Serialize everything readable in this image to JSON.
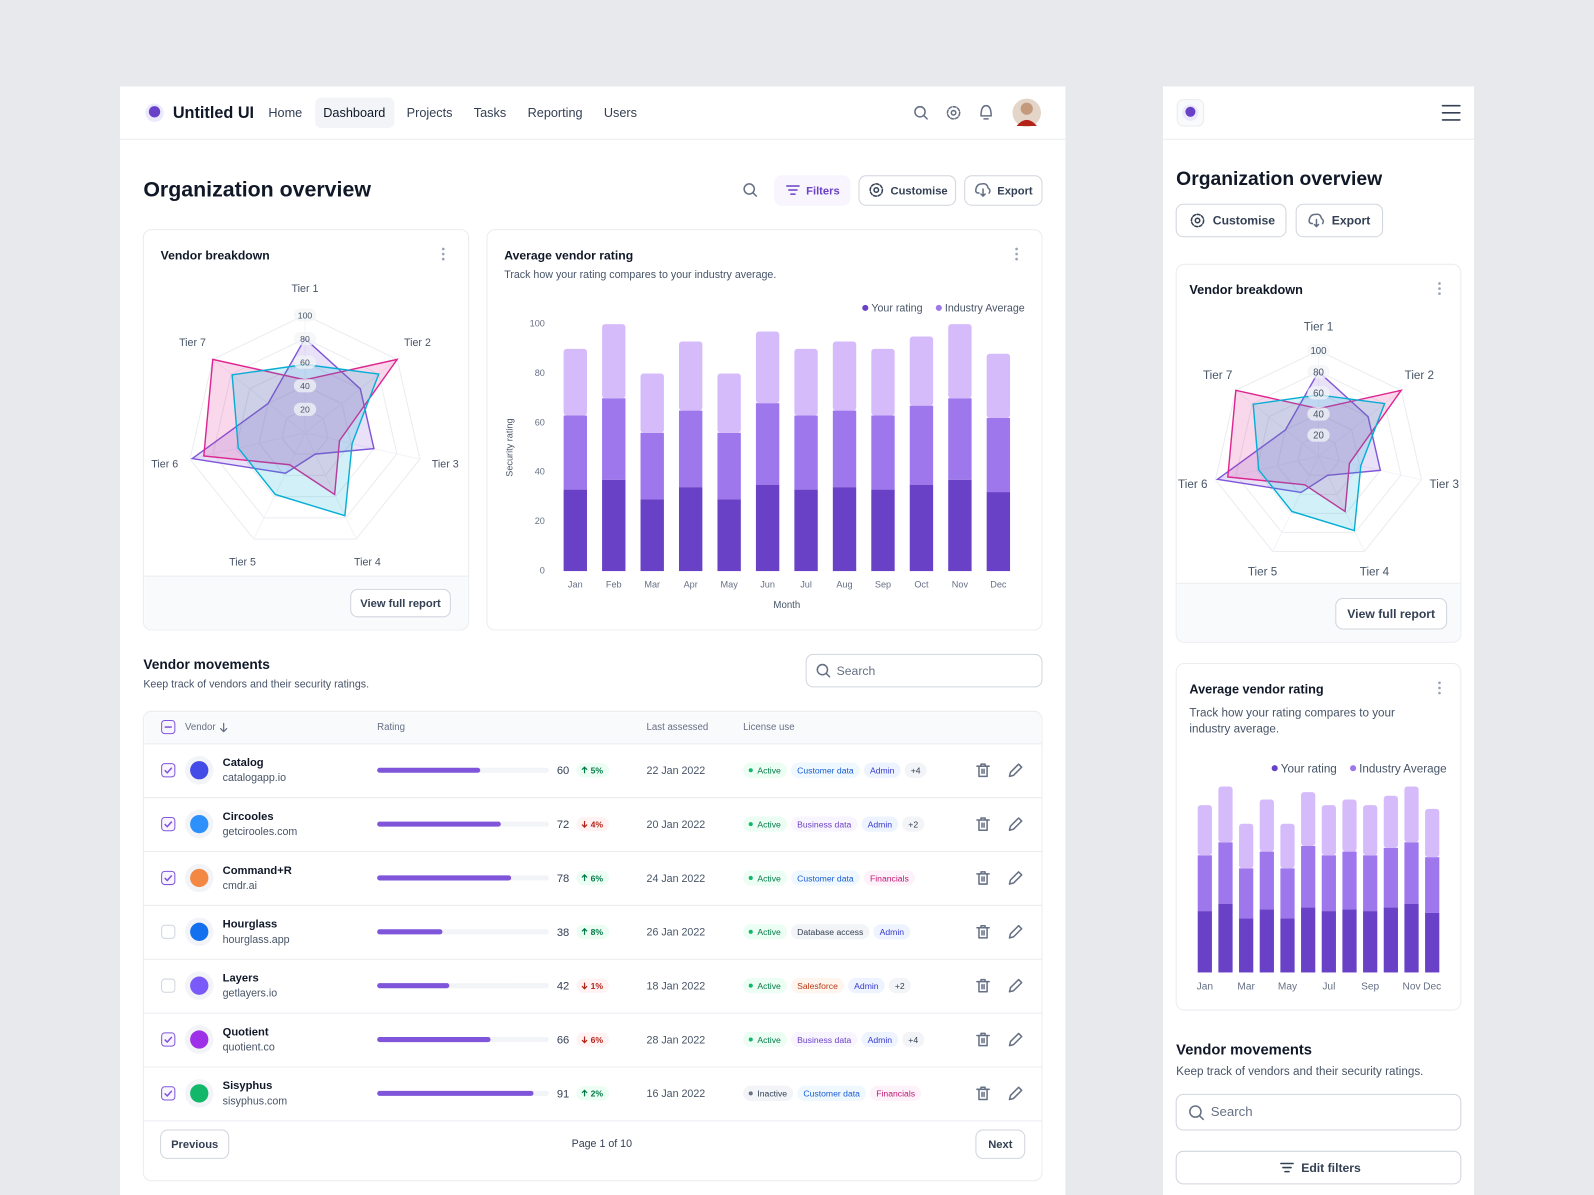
{
  "nav": {
    "brand": "Untitled UI",
    "links": [
      "Home",
      "Dashboard",
      "Projects",
      "Tasks",
      "Reporting",
      "Users"
    ]
  },
  "header": {
    "title": "Organization overview",
    "actions": [
      "Filters",
      "Customise",
      "Export"
    ]
  },
  "chart_data": [
    {
      "type": "radar",
      "title": "Vendor breakdown",
      "categories": [
        "Tier 1",
        "Tier 2",
        "Tier 3",
        "Tier 4",
        "Tier 5",
        "Tier 6",
        "Tier 7"
      ],
      "rlim": [
        0,
        100
      ],
      "rticks": [
        20,
        40,
        60,
        80,
        100
      ],
      "series": [
        {
          "color": "#7f56d9",
          "values": [
            80,
            60,
            60,
            20,
            38,
            98,
            40
          ]
        },
        {
          "color": "#dd2590",
          "values": [
            45,
            100,
            30,
            58,
            30,
            88,
            100
          ]
        },
        {
          "color": "#06aed4",
          "values": [
            58,
            80,
            41,
            78,
            58,
            58,
            79
          ]
        }
      ],
      "footer_action": "View full report"
    },
    {
      "type": "bar",
      "stacked": true,
      "title": "Average vendor rating",
      "subtitle": "Track how your rating compares to your industry average.",
      "xlabel": "Month",
      "ylabel": "Security rating",
      "categories": [
        "Jan",
        "Feb",
        "Mar",
        "Apr",
        "May",
        "Jun",
        "Jul",
        "Aug",
        "Sep",
        "Oct",
        "Nov",
        "Dec"
      ],
      "ylim": [
        0,
        100
      ],
      "yticks": [
        0,
        20,
        40,
        60,
        80,
        100
      ],
      "grid": false,
      "legend": "top-right",
      "series": [
        {
          "name": "Your rating",
          "color": "#6941c6",
          "values": [
            33,
            37,
            29,
            34,
            29,
            35,
            33,
            34,
            33,
            35,
            37,
            32
          ]
        },
        {
          "name": "Industry Average",
          "color": "#9e77ed",
          "values": [
            30,
            33,
            27,
            31,
            27,
            33,
            30,
            31,
            30,
            32,
            33,
            30
          ]
        },
        {
          "color": "#d6bbfb",
          "values": [
            27,
            30,
            24,
            28,
            24,
            29,
            27,
            28,
            27,
            28,
            30,
            26
          ]
        }
      ]
    }
  ],
  "vendor_movements": {
    "title": "Vendor movements",
    "subtitle": "Keep track of vendors and their security ratings.",
    "search_placeholder": "Search",
    "columns": [
      "Vendor",
      "Rating",
      "Last assessed",
      "License use"
    ],
    "rating_scale": [
      0,
      100
    ],
    "rows": [
      {
        "name": "Catalog",
        "domain": "catalogapp.io",
        "logo_color": "#444ce7",
        "checked": true,
        "rating": 60,
        "change": 5,
        "change_label": "5%",
        "trend": "up",
        "last_assessed": "22 Jan 2022",
        "tags": [
          {
            "text": "Active",
            "tone": "success"
          },
          {
            "text": "Customer data",
            "tone": "blue"
          },
          {
            "text": "Admin",
            "tone": "indigo"
          },
          {
            "text": "+4",
            "tone": "gray"
          }
        ]
      },
      {
        "name": "Circooles",
        "domain": "getcirooles.com",
        "logo_color": "#2e90fa",
        "checked": true,
        "rating": 72,
        "change": 4,
        "change_label": "4%",
        "trend": "down",
        "last_assessed": "20 Jan 2022",
        "tags": [
          {
            "text": "Active",
            "tone": "success"
          },
          {
            "text": "Business data",
            "tone": "purple"
          },
          {
            "text": "Admin",
            "tone": "indigo"
          },
          {
            "text": "+2",
            "tone": "gray"
          }
        ]
      },
      {
        "name": "Command+R",
        "domain": "cmdr.ai",
        "logo_color": "#f38744",
        "checked": true,
        "rating": 78,
        "change": 6,
        "change_label": "6%",
        "trend": "up",
        "last_assessed": "24 Jan 2022",
        "tags": [
          {
            "text": "Active",
            "tone": "success"
          },
          {
            "text": "Customer data",
            "tone": "blue"
          },
          {
            "text": "Financials",
            "tone": "pink"
          }
        ]
      },
      {
        "name": "Hourglass",
        "domain": "hourglass.app",
        "logo_color": "#1570ef",
        "checked": false,
        "rating": 38,
        "change": 8,
        "change_label": "8%",
        "trend": "up",
        "last_assessed": "26 Jan 2022",
        "tags": [
          {
            "text": "Active",
            "tone": "success"
          },
          {
            "text": "Database access",
            "tone": "gray"
          },
          {
            "text": "Admin",
            "tone": "indigo"
          }
        ]
      },
      {
        "name": "Layers",
        "domain": "getlayers.io",
        "logo_color": "#7a5af8",
        "checked": false,
        "rating": 42,
        "change": 1,
        "change_label": "1%",
        "trend": "down",
        "last_assessed": "18 Jan 2022",
        "tags": [
          {
            "text": "Active",
            "tone": "success"
          },
          {
            "text": "Salesforce",
            "tone": "orange"
          },
          {
            "text": "Admin",
            "tone": "indigo"
          },
          {
            "text": "+2",
            "tone": "gray"
          }
        ]
      },
      {
        "name": "Quotient",
        "domain": "quotient.co",
        "logo_color": "#9e30e8",
        "checked": true,
        "rating": 66,
        "change": 6,
        "change_label": "6%",
        "trend": "down",
        "last_assessed": "28 Jan 2022",
        "tags": [
          {
            "text": "Active",
            "tone": "success"
          },
          {
            "text": "Business data",
            "tone": "purple"
          },
          {
            "text": "Admin",
            "tone": "indigo"
          },
          {
            "text": "+4",
            "tone": "gray"
          }
        ]
      },
      {
        "name": "Sisyphus",
        "domain": "sisyphus.com",
        "logo_color": "#12b76a",
        "checked": true,
        "rating": 91,
        "change": 2,
        "change_label": "2%",
        "trend": "up",
        "last_assessed": "16 Jan 2022",
        "tags": [
          {
            "text": "Inactive",
            "tone": "inactive"
          },
          {
            "text": "Customer data",
            "tone": "blue"
          },
          {
            "text": "Financials",
            "tone": "pink"
          }
        ]
      }
    ],
    "pagination": {
      "previous": "Previous",
      "page_label": "Page 1 of 10",
      "next": "Next"
    }
  },
  "mobile": {
    "edit_filters": "Edit filters"
  }
}
